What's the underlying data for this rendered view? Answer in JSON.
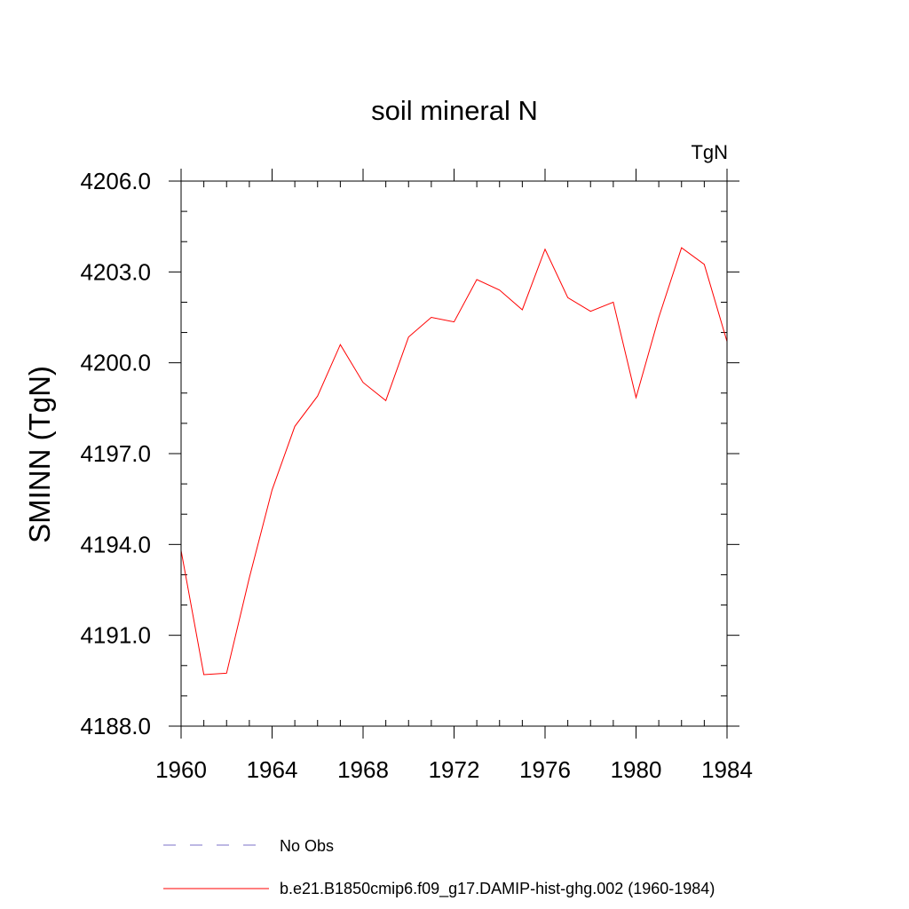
{
  "chart_data": {
    "type": "line",
    "title": "soil mineral N",
    "units_label": "TgN",
    "xlabel": "",
    "ylabel": "SMINN  (TgN)",
    "xlim": [
      1960,
      1984
    ],
    "ylim": [
      4188.0,
      4206.0
    ],
    "x_ticks": [
      1960,
      1964,
      1968,
      1972,
      1976,
      1980,
      1984
    ],
    "y_ticks": [
      "4188.0",
      "4191.0",
      "4194.0",
      "4197.0",
      "4200.0",
      "4203.0",
      "4206.0"
    ],
    "grid": false,
    "legend_position": "bottom",
    "series": [
      {
        "name": "No Obs",
        "color": "#7b72c8",
        "style": "dashed",
        "x": [],
        "values": []
      },
      {
        "name": "b.e21.B1850cmip6.f09_g17.DAMIP-hist-ghg.002 (1960-1984)",
        "color": "#ff0000",
        "style": "solid",
        "x": [
          1960,
          1961,
          1962,
          1963,
          1964,
          1965,
          1966,
          1967,
          1968,
          1969,
          1970,
          1971,
          1972,
          1973,
          1974,
          1975,
          1976,
          1977,
          1978,
          1979,
          1980,
          1981,
          1982,
          1983,
          1984
        ],
        "values": [
          4193.8,
          4189.7,
          4189.75,
          4192.9,
          4195.8,
          4197.9,
          4198.9,
          4200.6,
          4199.35,
          4198.75,
          4200.85,
          4201.5,
          4201.35,
          4202.75,
          4202.4,
          4201.75,
          4203.75,
          4202.15,
          4201.7,
          4202.0,
          4198.85,
          4201.5,
          4203.8,
          4203.25,
          4200.7
        ]
      }
    ]
  }
}
